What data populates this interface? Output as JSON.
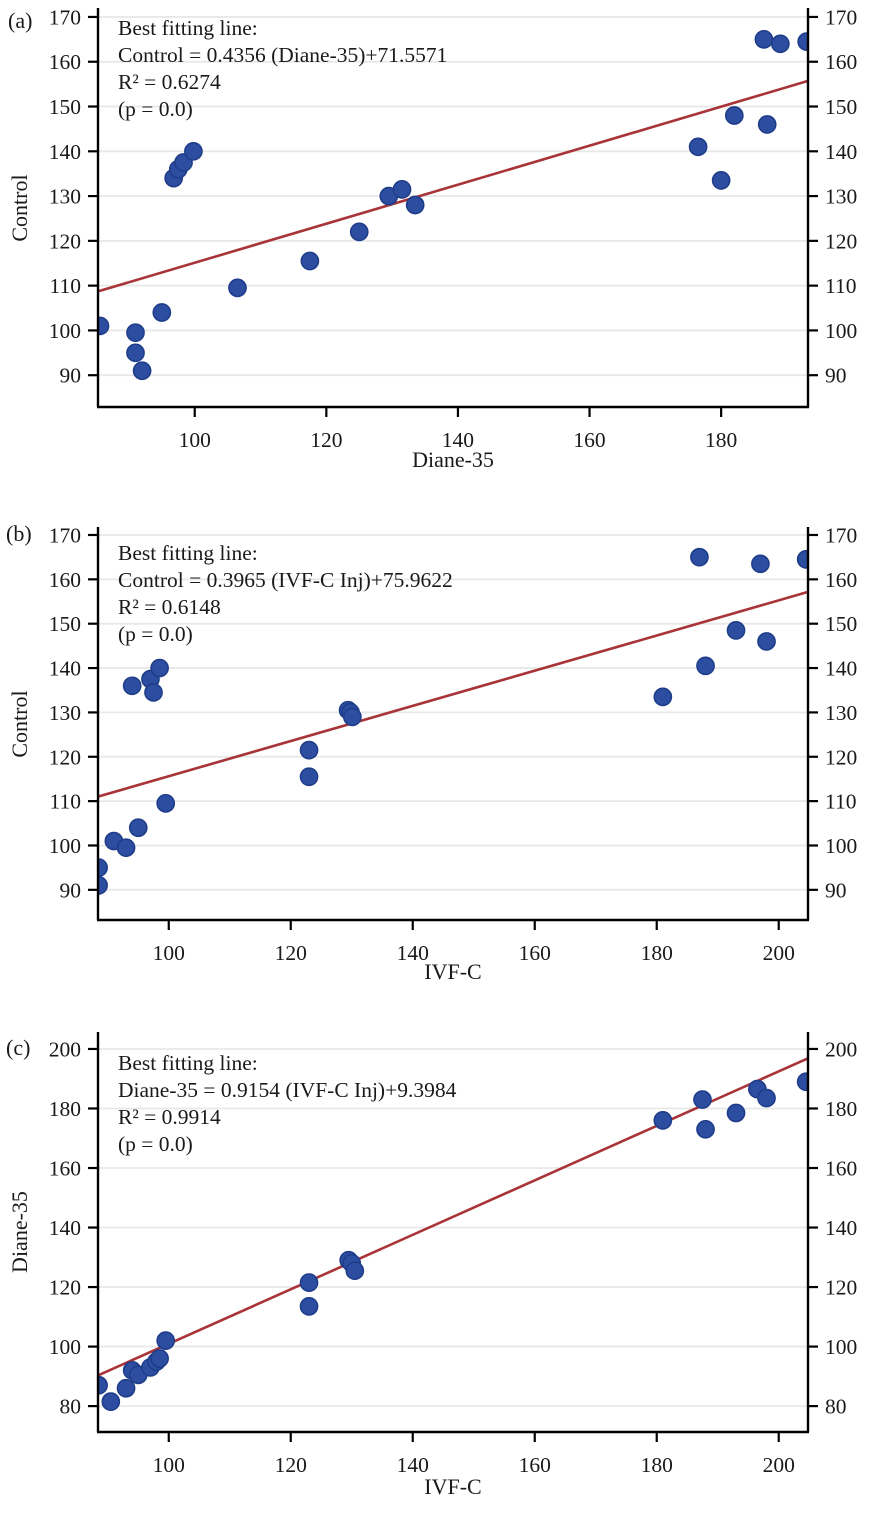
{
  "style": {
    "marker_fill": "#2C4DA0",
    "marker_stroke": "#1E3C88",
    "fit_line_color": "#A93438",
    "gridline_color": "#E8E8E8",
    "axis_color": "#000000",
    "text_color": "#1a1a1a"
  },
  "chart_data": [
    {
      "type": "scatter",
      "panel_label": "(a)",
      "xlabel": "Diane-35",
      "ylabel": "Control",
      "annotation_lines": [
        "Best fitting line:",
        "Control = 0.4356 (Diane-35)+71.5571",
        "R² = 0.6274",
        "(p = 0.0)"
      ],
      "fit": {
        "slope": 0.4356,
        "intercept": 71.5571,
        "r2": 0.6274,
        "p": 0.0
      },
      "grid": "horizontal-only",
      "xlim": [
        85.3,
        193.2
      ],
      "ylim": [
        82.9,
        172.0
      ],
      "x_ticks": [
        100,
        120,
        140,
        160,
        180
      ],
      "y_ticks": [
        90,
        100,
        110,
        120,
        130,
        140,
        150,
        160,
        170
      ],
      "points": [
        [
          85.6,
          101
        ],
        [
          91,
          99.5
        ],
        [
          91,
          95
        ],
        [
          92,
          91
        ],
        [
          95,
          104
        ],
        [
          96.8,
          134
        ],
        [
          97.5,
          136
        ],
        [
          98.3,
          137.5
        ],
        [
          99.8,
          140
        ],
        [
          106.5,
          109.5
        ],
        [
          117.5,
          115.5
        ],
        [
          125,
          122
        ],
        [
          129.5,
          130
        ],
        [
          131.5,
          131.5
        ],
        [
          133.5,
          128
        ],
        [
          176.5,
          141
        ],
        [
          180,
          133.5
        ],
        [
          182,
          148
        ],
        [
          187,
          146
        ],
        [
          186.5,
          165
        ],
        [
          189,
          164
        ],
        [
          193,
          164.5
        ]
      ]
    },
    {
      "type": "scatter",
      "panel_label": "(b)",
      "xlabel": "IVF-C",
      "ylabel": "Control",
      "annotation_lines": [
        "Best fitting line:",
        "Control = 0.3965 (IVF-C Inj)+75.9622",
        "R² = 0.6148",
        "(p = 0.0)"
      ],
      "fit": {
        "slope": 0.3965,
        "intercept": 75.9622,
        "r2": 0.6148,
        "p": 0.0
      },
      "grid": "horizontal-only",
      "xlim": [
        88.4,
        204.8
      ],
      "ylim": [
        83.2,
        171.8
      ],
      "x_ticks": [
        100,
        120,
        140,
        160,
        180,
        200
      ],
      "y_ticks": [
        90,
        100,
        110,
        120,
        130,
        140,
        150,
        160,
        170
      ],
      "points": [
        [
          88.5,
          95
        ],
        [
          88.5,
          91
        ],
        [
          91,
          101
        ],
        [
          93,
          99.5
        ],
        [
          95,
          104
        ],
        [
          99.5,
          109.5
        ],
        [
          94,
          136
        ],
        [
          97,
          137.5
        ],
        [
          97.5,
          134.5
        ],
        [
          98.5,
          140
        ],
        [
          123,
          121.5
        ],
        [
          123,
          115.5
        ],
        [
          129.4,
          130.5
        ],
        [
          129.8,
          130
        ],
        [
          130.1,
          129
        ],
        [
          181,
          133.5
        ],
        [
          187,
          165
        ],
        [
          188,
          140.5
        ],
        [
          193,
          148.5
        ],
        [
          197,
          163.5
        ],
        [
          198,
          146
        ],
        [
          204.5,
          164.5
        ]
      ]
    },
    {
      "type": "scatter",
      "panel_label": "(c)",
      "xlabel": "IVF-C",
      "ylabel": "Diane-35",
      "annotation_lines": [
        "Best fitting line:",
        "Diane-35 = 0.9154 (IVF-C Inj)+9.3984",
        "R² = 0.9914",
        "(p = 0.0)"
      ],
      "fit": {
        "slope": 0.9154,
        "intercept": 9.3984,
        "r2": 0.9914,
        "p": 0.0
      },
      "grid": "horizontal-only",
      "xlim": [
        88.4,
        204.8
      ],
      "ylim": [
        71.3,
        205.7
      ],
      "x_ticks": [
        100,
        120,
        140,
        160,
        180,
        200
      ],
      "y_ticks": [
        80,
        100,
        120,
        140,
        160,
        180,
        200
      ],
      "points": [
        [
          88.5,
          87
        ],
        [
          90.5,
          81.5
        ],
        [
          93,
          86
        ],
        [
          94,
          92
        ],
        [
          95,
          90.5
        ],
        [
          97,
          93
        ],
        [
          98,
          95
        ],
        [
          98.5,
          96
        ],
        [
          99.5,
          102
        ],
        [
          123,
          113.5
        ],
        [
          123,
          121.5
        ],
        [
          129.5,
          129
        ],
        [
          130,
          128
        ],
        [
          130.5,
          125.5
        ],
        [
          181,
          176
        ],
        [
          187.5,
          183
        ],
        [
          188,
          173
        ],
        [
          193,
          178.5
        ],
        [
          196.5,
          186.5
        ],
        [
          198,
          183.5
        ],
        [
          204.5,
          189
        ]
      ]
    }
  ]
}
